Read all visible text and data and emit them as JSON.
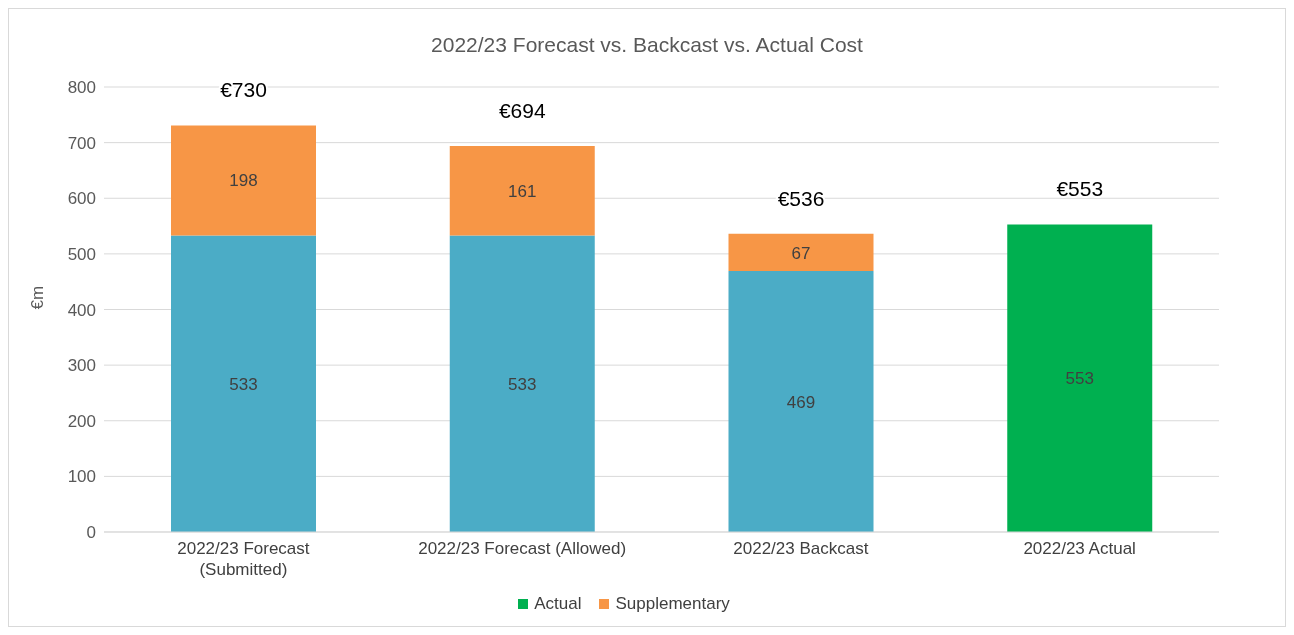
{
  "chart_data": {
    "type": "bar",
    "title": "2022/23 Forecast vs. Backcast vs. Actual Cost",
    "ylabel": "€m",
    "categories": [
      "2022/23 Forecast\n(Submitted)",
      "2022/23 Forecast (Allowed)",
      "2022/23 Backcast",
      "2022/23 Actual"
    ],
    "series": [
      {
        "name": "Actual",
        "color": "#00b050",
        "values": [
          null,
          null,
          null,
          553
        ]
      },
      {
        "color": "#4bacc6",
        "values": [
          533,
          533,
          469,
          null
        ]
      },
      {
        "name": "Supplementary",
        "color": "#f79646",
        "values": [
          198,
          161,
          67,
          null
        ]
      }
    ],
    "stacked": true,
    "data_labels": true,
    "totals": [
      "€730",
      "€694",
      "€536",
      "€553"
    ],
    "ylim": [
      0,
      800
    ],
    "yticks": [
      0,
      100,
      200,
      300,
      400,
      500,
      600,
      700,
      800
    ],
    "grid": "y",
    "legend": "bottom"
  }
}
